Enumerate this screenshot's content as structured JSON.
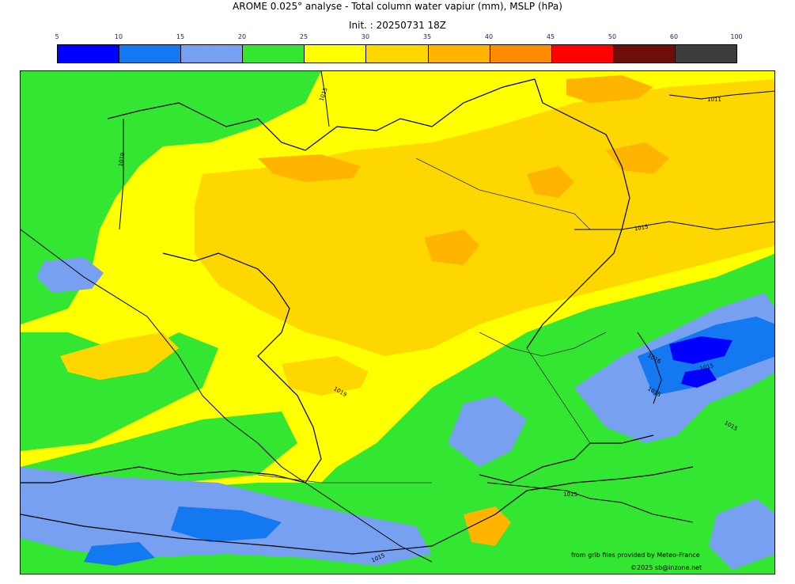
{
  "title": "AROME 0.025° analyse - Total column water vapiur (mm), MSLP (hPa)",
  "init": "Init. : 20250731 18Z",
  "colorbar": {
    "ticks": [
      "5",
      "10",
      "15",
      "20",
      "25",
      "30",
      "35",
      "40",
      "45",
      "50",
      "60",
      "100"
    ],
    "colors": [
      "#0000ff",
      "#1478f0",
      "#78a0f0",
      "#32e632",
      "#ffff00",
      "#ffd700",
      "#ffb400",
      "#ff8c00",
      "#ff0000",
      "#6e0e0a",
      "#3c3c3c"
    ]
  },
  "isobars": [
    {
      "label": "1015"
    },
    {
      "label": "1019"
    },
    {
      "label": "1011"
    },
    {
      "label": "1015"
    },
    {
      "label": "1019"
    },
    {
      "label": "1016"
    },
    {
      "label": "1015"
    },
    {
      "label": "1015"
    },
    {
      "label": "1015"
    },
    {
      "label": "1015"
    },
    {
      "label": "1015"
    }
  ],
  "credits": {
    "line1": "from grib files provided by Meteo-France",
    "line2": "©2025 sb@inzone.net"
  }
}
